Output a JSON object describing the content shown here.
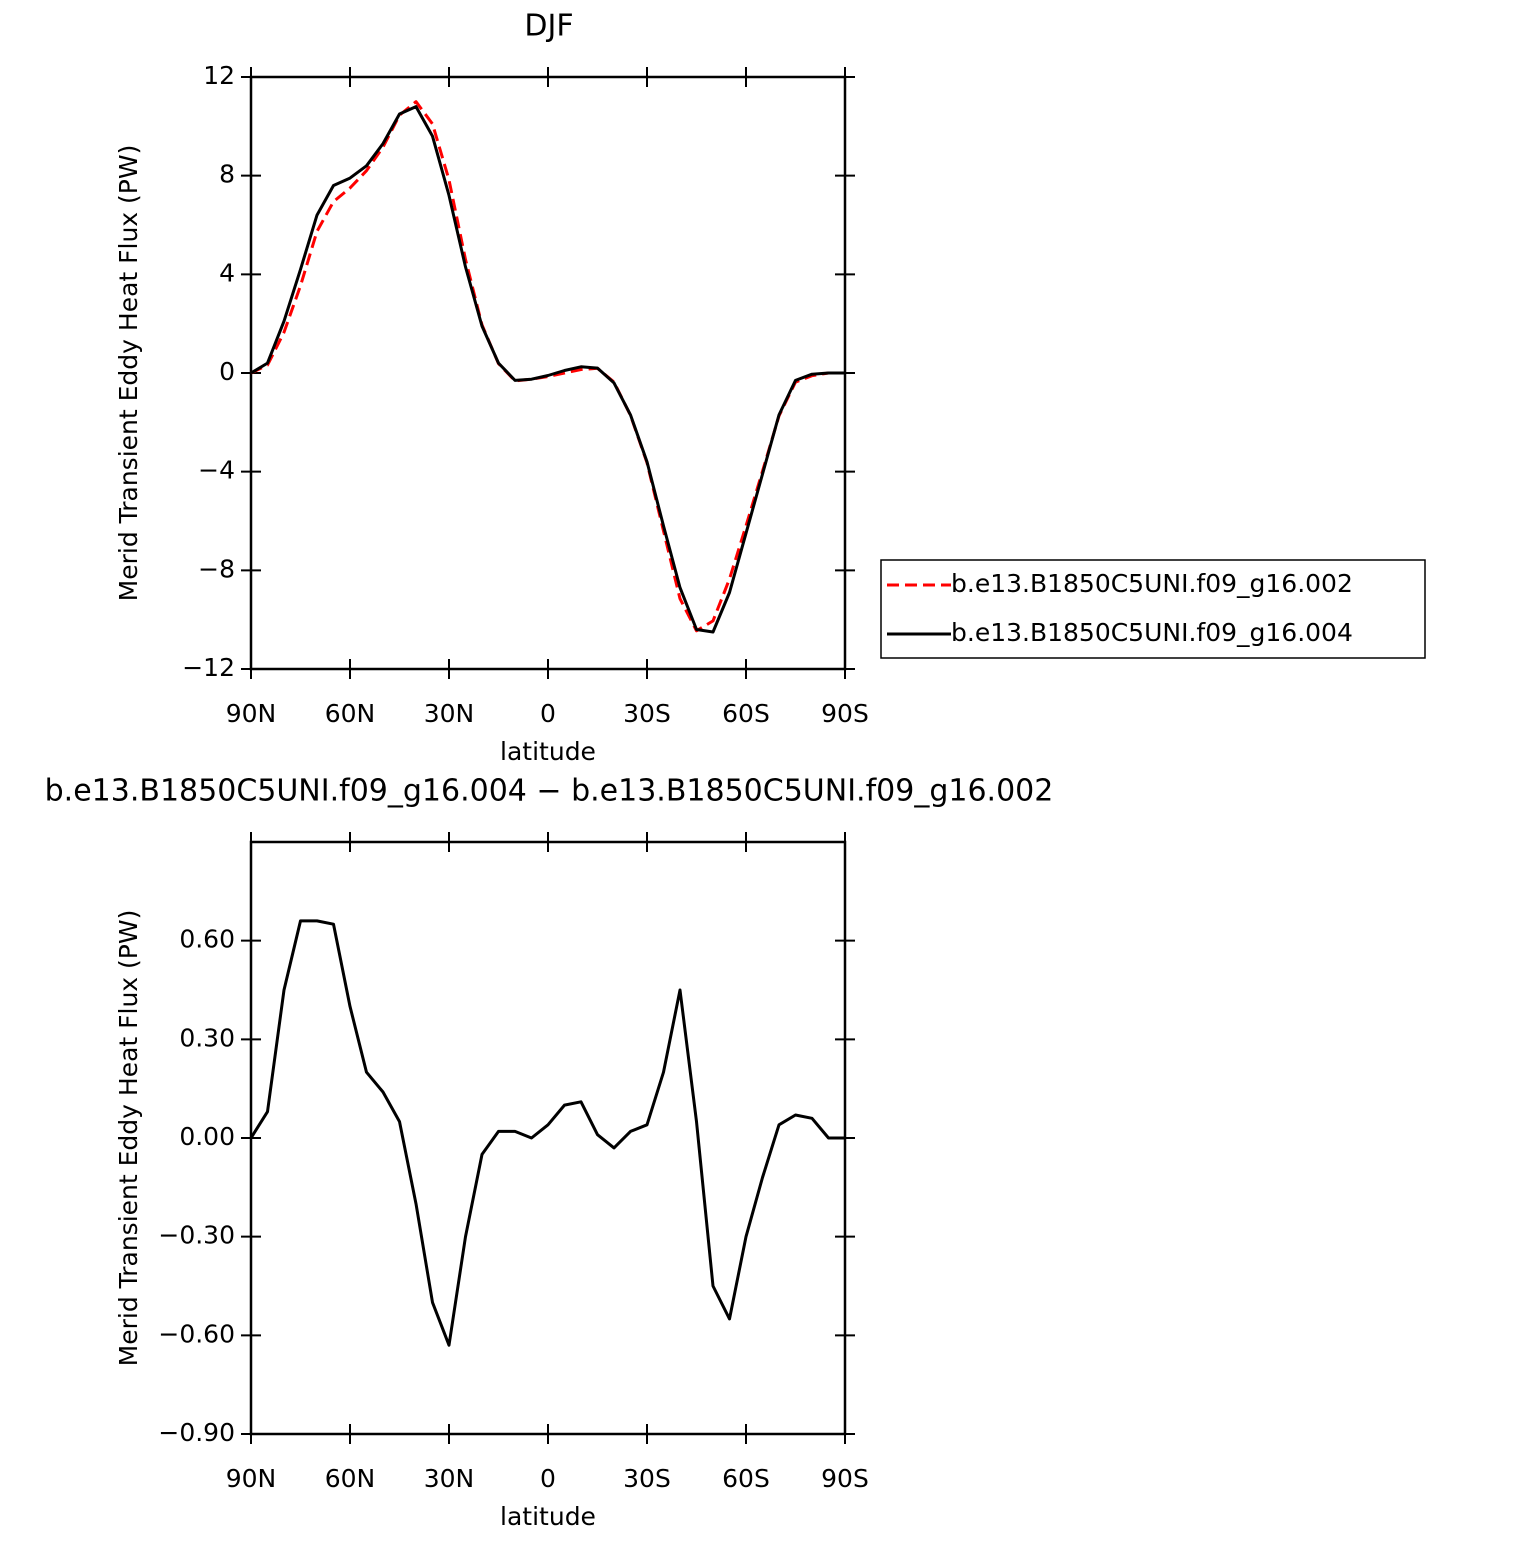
{
  "chart_data": [
    {
      "type": "line",
      "title": "DJF",
      "xlabel": "latitude",
      "ylabel": "Merid Transient Eddy Heat Flux (PW)",
      "x": [
        90,
        85,
        80,
        75,
        70,
        65,
        60,
        55,
        50,
        45,
        40,
        35,
        30,
        25,
        20,
        15,
        10,
        5,
        0,
        -5,
        -10,
        -15,
        -20,
        -25,
        -30,
        -35,
        -40,
        -45,
        -50,
        -55,
        -60,
        -65,
        -70,
        -75,
        -80,
        -85,
        -90
      ],
      "xlim": [
        90,
        -90
      ],
      "xticks": [
        {
          "value": 90,
          "label": "90N"
        },
        {
          "value": 60,
          "label": "60N"
        },
        {
          "value": 30,
          "label": "30N"
        },
        0,
        {
          "value": -30,
          "label": "30S"
        },
        {
          "value": -60,
          "label": "60S"
        },
        {
          "value": -90,
          "label": "90S"
        }
      ],
      "ylim": [
        -12,
        12
      ],
      "yticks": [
        {
          "value": -12,
          "label": "−12"
        },
        {
          "value": -8,
          "label": "−8"
        },
        {
          "value": -4,
          "label": "−4"
        },
        0,
        4,
        8,
        12
      ],
      "legend": "right",
      "series": [
        {
          "name": "b.e13.B1850C5UNI.f09_g16.002",
          "color": "#ff0000",
          "style": "dashed",
          "values": [
            0,
            0.32,
            1.65,
            3.54,
            5.74,
            6.95,
            7.5,
            8.2,
            9.16,
            10.45,
            11.0,
            10.1,
            7.83,
            4.6,
            1.95,
            0.38,
            -0.32,
            -0.25,
            -0.14,
            0.0,
            0.14,
            0.19,
            -0.37,
            -1.72,
            -3.64,
            -6.4,
            -9.15,
            -10.45,
            -10.05,
            -8.35,
            -6.2,
            -3.98,
            -1.74,
            -0.37,
            -0.11,
            0,
            0
          ]
        },
        {
          "name": "b.e13.B1850C5UNI.f09_g16.004",
          "color": "#000000",
          "style": "solid",
          "values": [
            0,
            0.4,
            2.1,
            4.2,
            6.4,
            7.6,
            7.9,
            8.4,
            9.3,
            10.5,
            10.8,
            9.6,
            7.2,
            4.3,
            1.9,
            0.4,
            -0.3,
            -0.25,
            -0.1,
            0.1,
            0.25,
            0.2,
            -0.4,
            -1.7,
            -3.6,
            -6.2,
            -8.7,
            -10.4,
            -10.5,
            -8.9,
            -6.5,
            -4.1,
            -1.7,
            -0.3,
            -0.05,
            0,
            0
          ]
        }
      ]
    },
    {
      "type": "line",
      "title": "b.e13.B1850C5UNI.f09_g16.004 − b.e13.B1850C5UNI.f09_g16.002",
      "xlabel": "latitude",
      "ylabel": "Merid Transient Eddy Heat Flux (PW)",
      "x": [
        90,
        85,
        80,
        75,
        70,
        65,
        60,
        55,
        50,
        45,
        40,
        35,
        30,
        25,
        20,
        15,
        10,
        5,
        0,
        -5,
        -10,
        -15,
        -20,
        -25,
        -30,
        -35,
        -40,
        -45,
        -50,
        -55,
        -60,
        -65,
        -70,
        -75,
        -80,
        -85,
        -90
      ],
      "xlim": [
        90,
        -90
      ],
      "xticks": [
        {
          "value": 90,
          "label": "90N"
        },
        {
          "value": 60,
          "label": "60N"
        },
        {
          "value": 30,
          "label": "30N"
        },
        0,
        {
          "value": -30,
          "label": "30S"
        },
        {
          "value": -60,
          "label": "60S"
        },
        {
          "value": -90,
          "label": "90S"
        }
      ],
      "ylim": [
        -0.9,
        0.9
      ],
      "yticks": [
        {
          "value": -0.9,
          "label": "−0.90"
        },
        {
          "value": -0.6,
          "label": "−0.60"
        },
        {
          "value": -0.3,
          "label": "−0.30"
        },
        {
          "value": 0,
          "label": "0.00"
        },
        {
          "value": 0.3,
          "label": "0.30"
        },
        {
          "value": 0.6,
          "label": "0.60"
        }
      ],
      "series": [
        {
          "color": "#000000",
          "style": "solid",
          "values": [
            0,
            0.08,
            0.45,
            0.66,
            0.66,
            0.65,
            0.4,
            0.2,
            0.14,
            0.05,
            -0.2,
            -0.5,
            -0.63,
            -0.3,
            -0.05,
            0.02,
            0.02,
            0.0,
            0.04,
            0.1,
            0.11,
            0.01,
            -0.03,
            0.02,
            0.04,
            0.2,
            0.45,
            0.05,
            -0.45,
            -0.55,
            -0.3,
            -0.12,
            0.04,
            0.07,
            0.06,
            0,
            0
          ]
        }
      ]
    }
  ]
}
